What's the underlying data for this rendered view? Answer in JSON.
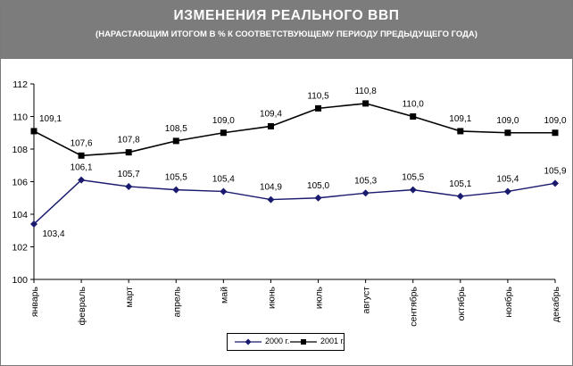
{
  "header": {
    "title": "ИЗМЕНЕНИЯ РЕАЛЬНОГО ВВП",
    "subtitle": "(НАРАСТАЮЩИМ ИТОГОМ В % К СООТВЕТСТВУЮЩЕМУ ПЕРИОДУ ПРЕДЫДУЩЕГО ГОДА)"
  },
  "colors": {
    "header_bg": "#7c7c7c",
    "series_2000": "#1a1a6e",
    "series_2001": "#000000"
  },
  "chart_data": {
    "type": "line",
    "title": "ИЗМЕНЕНИЯ РЕАЛЬНОГО ВВП",
    "subtitle": "(НАРАСТАЮЩИМ ИТОГОМ В % К СООТВЕТСТВУЮЩЕМУ ПЕРИОДУ ПРЕДЫДУЩЕГО ГОДА)",
    "categories": [
      "январь",
      "февраль",
      "март",
      "апрель",
      "май",
      "июнь",
      "июль",
      "август",
      "сентябрь",
      "октябрь",
      "ноябрь",
      "декабрь"
    ],
    "ylim": [
      100,
      112
    ],
    "yticks": [
      "100",
      "102",
      "104",
      "106",
      "108",
      "110",
      "112"
    ],
    "grid": false,
    "legend_position": "bottom-center",
    "series": [
      {
        "name": "2000 г.",
        "marker": "diamond",
        "values": [
          103.4,
          106.1,
          105.7,
          105.5,
          105.4,
          104.9,
          105.0,
          105.3,
          105.5,
          105.1,
          105.4,
          105.9
        ],
        "labels": [
          "103,4",
          "106,1",
          "105,7",
          "105,5",
          "105,4",
          "104,9",
          "105,0",
          "105,3",
          "105,5",
          "105,1",
          "105,4",
          "105,9"
        ]
      },
      {
        "name": "2001 г.",
        "marker": "square",
        "values": [
          109.1,
          107.6,
          107.8,
          108.5,
          109.0,
          109.4,
          110.5,
          110.8,
          110.0,
          109.1,
          109.0,
          109.0
        ],
        "labels": [
          "109,1",
          "107,6",
          "107,8",
          "108,5",
          "109,0",
          "109,4",
          "110,5",
          "110,8",
          "110,0",
          "109,1",
          "109,0",
          "109,0"
        ]
      }
    ]
  }
}
